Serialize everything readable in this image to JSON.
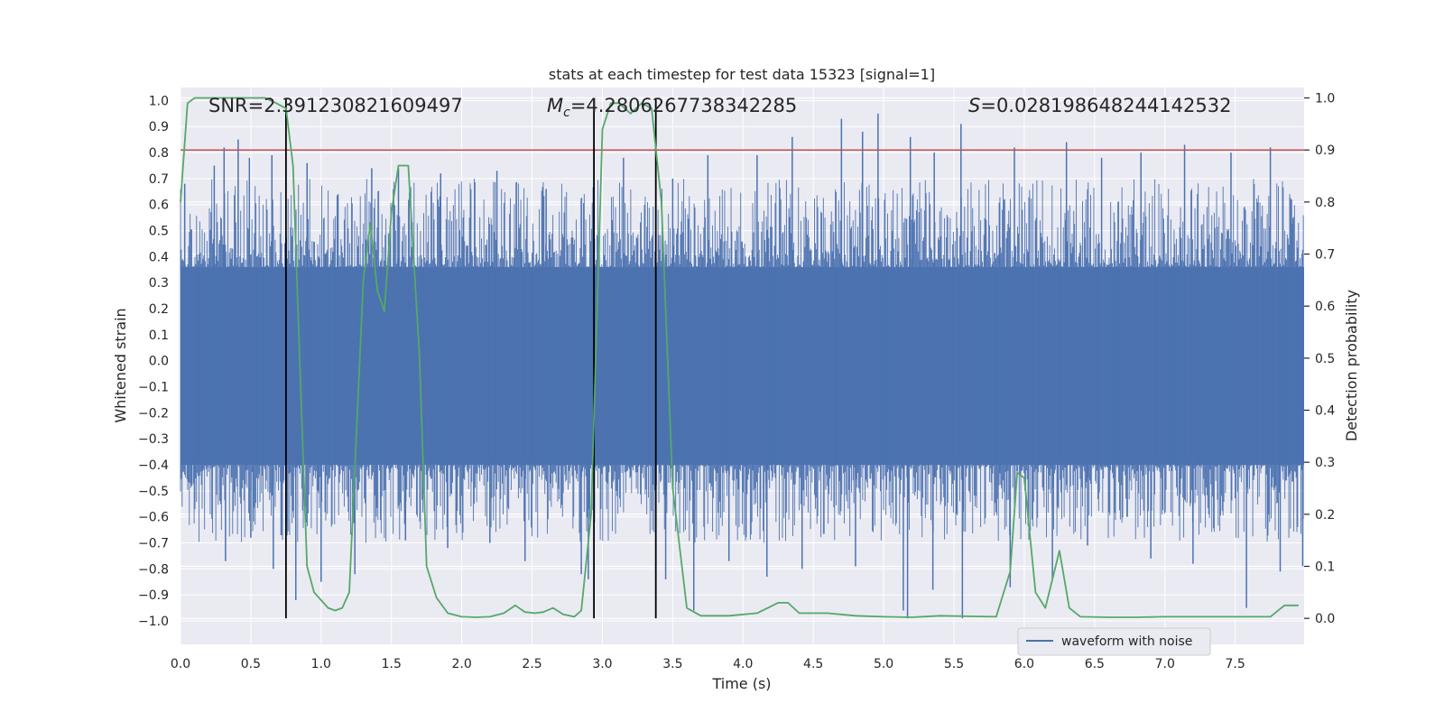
{
  "chart_data": {
    "type": "line",
    "title": "stats at each timestep for test data 15323 [signal=1]",
    "xlabel": "Time (s)",
    "ylabel_left": "Whitened strain",
    "ylabel_right": "Detection probability",
    "xlim": [
      0.0,
      7.99
    ],
    "ylim_left": [
      -1.09,
      1.05
    ],
    "ylim_right": [
      -0.05,
      1.02
    ],
    "x_ticks": [
      0.0,
      0.5,
      1.0,
      1.5,
      2.0,
      2.5,
      3.0,
      3.5,
      4.0,
      4.5,
      5.0,
      5.5,
      6.0,
      6.5,
      7.0,
      7.5
    ],
    "x_tick_labels": [
      "0.0",
      "0.5",
      "1.0",
      "1.5",
      "2.0",
      "2.5",
      "3.0",
      "3.5",
      "4.0",
      "4.5",
      "5.0",
      "5.5",
      "6.0",
      "6.5",
      "7.0",
      "7.5"
    ],
    "y_left_ticks": [
      1.0,
      0.9,
      0.8,
      0.7,
      0.6,
      0.5,
      0.4,
      0.3,
      0.2,
      0.1,
      0.0,
      -0.1,
      -0.2,
      -0.3,
      -0.4,
      -0.5,
      -0.6,
      -0.7,
      -0.8,
      -0.9,
      -1.0
    ],
    "y_left_tick_labels": [
      "1.0",
      "0.9",
      "0.8",
      "0.7",
      "0.6",
      "0.5",
      "0.4",
      "0.3",
      "0.2",
      "0.1",
      "0.0",
      "−0.1",
      "−0.2",
      "−0.3",
      "−0.4",
      "−0.5",
      "−0.6",
      "−0.7",
      "−0.8",
      "−0.9",
      "−1.0"
    ],
    "y_right_ticks": [
      1.0,
      0.9,
      0.8,
      0.7,
      0.6,
      0.5,
      0.4,
      0.3,
      0.2,
      0.1,
      0.0
    ],
    "y_right_tick_labels": [
      "1.0",
      "0.9",
      "0.8",
      "0.7",
      "0.6",
      "0.5",
      "0.4",
      "0.3",
      "0.2",
      "0.1",
      "0.0"
    ],
    "threshold": 0.9,
    "event_lines_x": [
      0.75,
      2.94,
      3.38
    ],
    "waveform": {
      "name": "waveform with noise",
      "envelope_upper": 0.36,
      "envelope_lower": -0.4,
      "spikes": [
        {
          "x": 0.03,
          "y": 0.68
        },
        {
          "x": 0.24,
          "y": 0.75
        },
        {
          "x": 0.31,
          "y": 0.82
        },
        {
          "x": 0.41,
          "y": 0.85
        },
        {
          "x": 0.49,
          "y": 0.78
        },
        {
          "x": 0.65,
          "y": 0.79
        },
        {
          "x": 0.9,
          "y": 0.76
        },
        {
          "x": 1.12,
          "y": 0.64
        },
        {
          "x": 1.36,
          "y": 0.74
        },
        {
          "x": 1.55,
          "y": 0.74
        },
        {
          "x": 1.85,
          "y": 0.72
        },
        {
          "x": 2.25,
          "y": 0.73
        },
        {
          "x": 2.6,
          "y": 0.66
        },
        {
          "x": 3.15,
          "y": 0.78
        },
        {
          "x": 3.5,
          "y": 0.7
        },
        {
          "x": 3.75,
          "y": 0.79
        },
        {
          "x": 4.1,
          "y": 0.79
        },
        {
          "x": 4.35,
          "y": 0.86
        },
        {
          "x": 4.7,
          "y": 0.93
        },
        {
          "x": 4.85,
          "y": 0.88
        },
        {
          "x": 4.96,
          "y": 0.95
        },
        {
          "x": 5.19,
          "y": 0.86
        },
        {
          "x": 5.36,
          "y": 0.8
        },
        {
          "x": 5.55,
          "y": 0.91
        },
        {
          "x": 5.93,
          "y": 0.82
        },
        {
          "x": 6.3,
          "y": 0.84
        },
        {
          "x": 6.55,
          "y": 0.78
        },
        {
          "x": 6.83,
          "y": 0.8
        },
        {
          "x": 7.14,
          "y": 0.83
        },
        {
          "x": 7.47,
          "y": 0.8
        },
        {
          "x": 7.75,
          "y": 0.82
        },
        {
          "x": 7.9,
          "y": 0.62
        },
        {
          "x": 0.08,
          "y": -0.48
        },
        {
          "x": 0.32,
          "y": -0.77
        },
        {
          "x": 0.5,
          "y": -0.68
        },
        {
          "x": 0.66,
          "y": -0.8
        },
        {
          "x": 0.82,
          "y": -0.92
        },
        {
          "x": 1.0,
          "y": -0.85
        },
        {
          "x": 1.24,
          "y": -0.82
        },
        {
          "x": 1.6,
          "y": -0.69
        },
        {
          "x": 1.9,
          "y": -0.72
        },
        {
          "x": 2.2,
          "y": -0.7
        },
        {
          "x": 2.45,
          "y": -0.77
        },
        {
          "x": 2.85,
          "y": -0.82
        },
        {
          "x": 2.9,
          "y": -0.84
        },
        {
          "x": 3.45,
          "y": -0.84
        },
        {
          "x": 3.65,
          "y": -0.96
        },
        {
          "x": 3.9,
          "y": -0.77
        },
        {
          "x": 4.17,
          "y": -0.83
        },
        {
          "x": 4.42,
          "y": -0.8
        },
        {
          "x": 4.8,
          "y": -0.79
        },
        {
          "x": 5.14,
          "y": -0.96
        },
        {
          "x": 5.17,
          "y": -0.99
        },
        {
          "x": 5.35,
          "y": -0.88
        },
        {
          "x": 5.56,
          "y": -0.99
        },
        {
          "x": 5.9,
          "y": -0.87
        },
        {
          "x": 6.2,
          "y": -0.84
        },
        {
          "x": 6.45,
          "y": -0.71
        },
        {
          "x": 6.9,
          "y": -0.76
        },
        {
          "x": 7.2,
          "y": -0.78
        },
        {
          "x": 7.58,
          "y": -0.95
        },
        {
          "x": 7.82,
          "y": -0.81
        },
        {
          "x": 7.98,
          "y": -0.79
        }
      ]
    },
    "probability": {
      "name": "detection probability",
      "x": [
        0.0,
        0.05,
        0.1,
        0.2,
        0.3,
        0.4,
        0.5,
        0.6,
        0.68,
        0.75,
        0.8,
        0.85,
        0.9,
        0.95,
        1.0,
        1.05,
        1.1,
        1.15,
        1.2,
        1.25,
        1.3,
        1.35,
        1.4,
        1.45,
        1.5,
        1.55,
        1.62,
        1.7,
        1.75,
        1.82,
        1.9,
        2.0,
        2.1,
        2.2,
        2.3,
        2.38,
        2.45,
        2.52,
        2.58,
        2.65,
        2.72,
        2.8,
        2.85,
        2.92,
        3.0,
        3.06,
        3.12,
        3.2,
        3.28,
        3.35,
        3.42,
        3.5,
        3.6,
        3.7,
        3.9,
        4.1,
        4.25,
        4.32,
        4.4,
        4.6,
        4.8,
        5.0,
        5.2,
        5.4,
        5.6,
        5.8,
        5.9,
        5.95,
        6.0,
        6.08,
        6.15,
        6.25,
        6.32,
        6.4,
        6.6,
        6.8,
        7.0,
        7.2,
        7.4,
        7.6,
        7.75,
        7.85,
        7.95
      ],
      "y": [
        0.8,
        0.99,
        1.0,
        1.0,
        1.0,
        1.0,
        1.0,
        1.0,
        0.99,
        0.98,
        0.87,
        0.48,
        0.1,
        0.05,
        0.035,
        0.02,
        0.015,
        0.02,
        0.05,
        0.35,
        0.65,
        0.76,
        0.63,
        0.59,
        0.78,
        0.87,
        0.87,
        0.5,
        0.1,
        0.04,
        0.01,
        0.003,
        0.002,
        0.003,
        0.01,
        0.025,
        0.012,
        0.01,
        0.012,
        0.02,
        0.008,
        0.003,
        0.015,
        0.2,
        0.94,
        0.99,
        0.99,
        0.97,
        0.99,
        0.98,
        0.8,
        0.25,
        0.02,
        0.005,
        0.005,
        0.01,
        0.03,
        0.03,
        0.01,
        0.01,
        0.005,
        0.003,
        0.002,
        0.005,
        0.004,
        0.003,
        0.09,
        0.28,
        0.27,
        0.05,
        0.02,
        0.13,
        0.02,
        0.003,
        0.002,
        0.002,
        0.003,
        0.003,
        0.003,
        0.003,
        0.003,
        0.025,
        0.025
      ]
    },
    "annotations": {
      "snr": "SNR=2.391230821609497",
      "mc_symbol": "M",
      "mc_subscript": "c",
      "mc_value": "=4.2806267738342285",
      "s_symbol": "S",
      "s_value": "=0.028198648244142532"
    },
    "legend": {
      "label": "waveform with noise",
      "position": "lower-right"
    }
  },
  "colors": {
    "background": "#ffffff",
    "axes_face": "#eaeaf2",
    "grid": "#ffffff",
    "waveform": "#4c72b0",
    "probability": "#55a868",
    "threshold": "#c44e52",
    "event_line": "#000000",
    "text": "#262626"
  }
}
